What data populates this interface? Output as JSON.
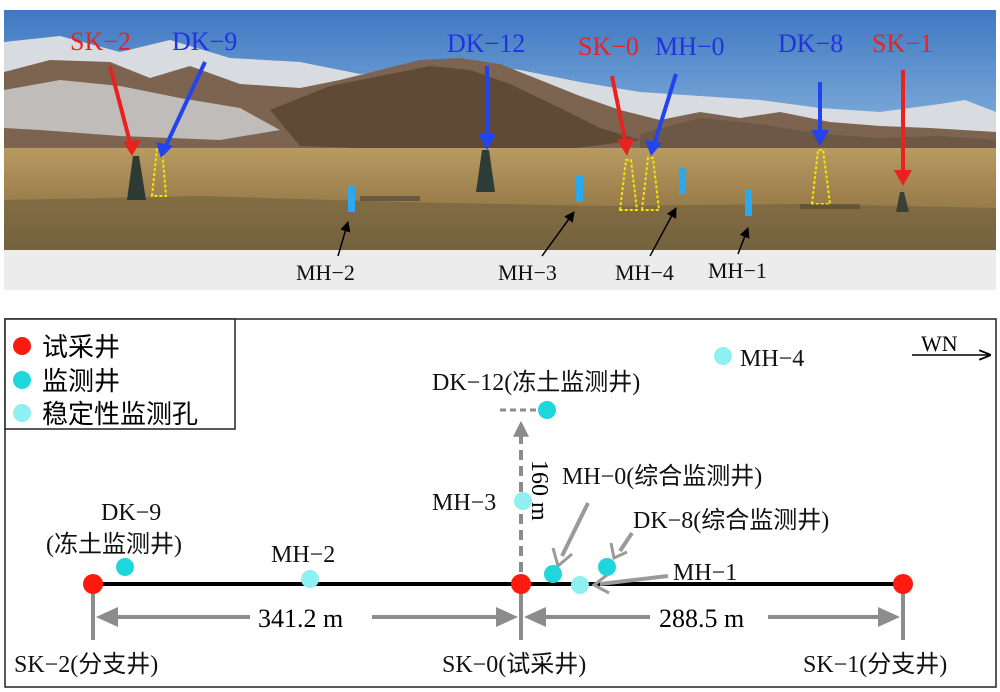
{
  "photo_labels": {
    "sk2": "SK−2",
    "dk9": "DK−9",
    "dk12": "DK−12",
    "sk0": "SK−0",
    "mh0": "MH−0",
    "dk8": "DK−8",
    "sk1": "SK−1",
    "mh2": "MH−2",
    "mh3": "MH−3",
    "mh4": "MH−4",
    "mh1": "MH−1"
  },
  "legend": {
    "trial_well": "试采井",
    "monitor_well": "监测井",
    "stability_hole": "稳定性监测孔"
  },
  "compass": "WN",
  "map_labels": {
    "dk12": "DK−12(冻土监测井)",
    "mh4": "MH−4",
    "mh3": "MH−3",
    "distance_160": "160 m",
    "mh0": "MH−0(综合监测井)",
    "dk8": "DK−8(综合监测井)",
    "dk9_line1": "DK−9",
    "dk9_line2": "(冻土监测井)",
    "mh2": "MH−2",
    "mh1": "MH−1",
    "distance_left": "341.2 m",
    "distance_right": "288.5 m",
    "sk2": "SK−2(分支井)",
    "sk0": "SK−0(试采井)",
    "sk1": "SK−1(分支井)"
  },
  "colors": {
    "red_label": "#e8231f",
    "blue_label": "#2233dd",
    "trial_well": "#ff1a10",
    "monitor_well": "#1fd6dc",
    "stability_hole": "#8ff0f2",
    "gray_arrow": "#8c8c8c"
  }
}
